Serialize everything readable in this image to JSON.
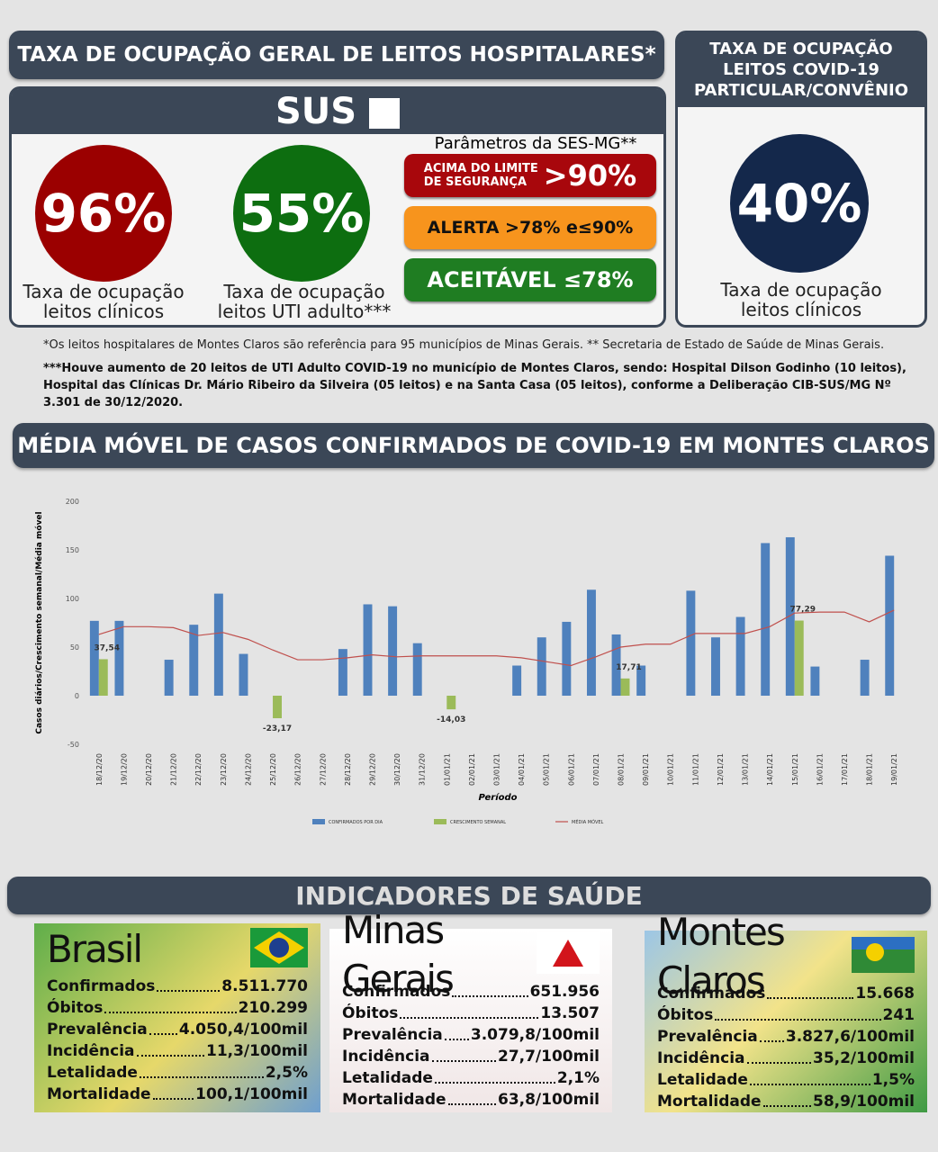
{
  "occupancy": {
    "title": "TAXA DE OCUPAÇÃO GERAL DE LEITOS HOSPITALARES*",
    "logo": "SUS",
    "clinical": {
      "value": "96%",
      "lines": [
        "Taxa de ocupação",
        "leitos clínicos"
      ]
    },
    "icu": {
      "value": "55%",
      "lines": [
        "Taxa de ocupação",
        "leitos UTI adulto***"
      ]
    },
    "parameters": {
      "title": "Parâmetros da SES-MG**",
      "items": [
        {
          "lines": [
            "ACIMA DO LIMITE",
            "DE SEGURANÇA"
          ],
          "value": ">90%"
        },
        {
          "text": "ALERTA >78% e≤90%"
        },
        {
          "text": "ACEITÁVEL ≤78%"
        }
      ]
    }
  },
  "private": {
    "lines": [
      "TAXA DE OCUPAÇÃO",
      "LEITOS COVID-19",
      "PARTICULAR/CONVÊNIO"
    ],
    "value": "40%",
    "labels": [
      "Taxa de ocupação",
      "leitos clínicos"
    ]
  },
  "notes": [
    "*Os leitos hospitalares de Montes Claros são referência para 95 municípios de Minas Gerais. ** Secretaria de Estado de Saúde de Minas Gerais.",
    "***Houve aumento de 20 leitos de UTI Adulto COVID-19 no município de Montes Claros, sendo: Hospital Dilson Godinho (10 leitos), Hospital das Clínicas Dr. Mário Ribeiro da Silveira (05 leitos) e na Santa Casa (05 leitos), conforme a Deliberação CIB-SUS/MG Nº 3.301 de 30/12/2020."
  ],
  "chart_data": {
    "type": "bar",
    "title": "MÉDIA MÓVEL DE CASOS CONFIRMADOS DE COVID-19 EM MONTES CLAROS",
    "x_label": "Período",
    "y_label": "Casos diários/Crescimento semanal/Média móvel",
    "categories": [
      "18/12/20",
      "19/12/20",
      "20/12/20",
      "21/12/20",
      "22/12/20",
      "23/12/20",
      "24/12/20",
      "25/12/20",
      "26/12/20",
      "27/12/20",
      "28/12/20",
      "29/12/20",
      "30/12/20",
      "31/12/20",
      "01/01/21",
      "02/01/21",
      "03/01/21",
      "04/01/21",
      "05/01/21",
      "06/01/21",
      "07/01/21",
      "08/01/21",
      "09/01/21",
      "10/01/21",
      "11/01/21",
      "12/01/21",
      "13/01/21",
      "14/01/21",
      "15/01/21",
      "16/01/21",
      "17/01/21",
      "18/01/21",
      "19/01/21"
    ],
    "ylim": [
      -50,
      200
    ],
    "yticks": [
      -50,
      0,
      50,
      100,
      150,
      200
    ],
    "series": [
      {
        "name": "CONFIRMADOS POR DIA",
        "type": "bar",
        "color": "#4f81bd",
        "values": [
          77,
          77,
          null,
          37,
          73,
          105,
          43,
          null,
          null,
          null,
          48,
          94,
          92,
          54,
          null,
          null,
          null,
          31,
          60,
          76,
          109,
          63,
          31,
          null,
          108,
          60,
          81,
          157,
          163,
          30,
          null,
          37,
          144
        ]
      },
      {
        "name": "CRESCIMENTO SEMANAL",
        "type": "bar",
        "color": "#9bbb59",
        "values": [
          37.54,
          null,
          null,
          null,
          null,
          null,
          null,
          -23.17,
          null,
          null,
          null,
          null,
          null,
          null,
          -14.03,
          null,
          null,
          null,
          null,
          null,
          null,
          17.71,
          null,
          null,
          null,
          null,
          null,
          null,
          77.29,
          null,
          null,
          null,
          null
        ],
        "value_labels": [
          "37,54",
          null,
          null,
          null,
          null,
          null,
          null,
          "-23,17",
          null,
          null,
          null,
          null,
          null,
          null,
          "-14,03",
          null,
          null,
          null,
          null,
          null,
          null,
          "17,71",
          null,
          null,
          null,
          null,
          null,
          null,
          "77,29",
          null,
          null,
          null,
          null
        ]
      },
      {
        "name": "MÉDIA MÓVEL",
        "type": "line",
        "color": "#c0504d",
        "values": [
          63,
          71,
          71,
          70,
          62,
          65,
          58,
          47,
          37,
          37,
          39,
          42,
          40,
          41,
          41,
          41,
          41,
          39,
          35,
          31,
          40,
          50,
          53,
          53,
          64,
          64,
          64,
          71,
          85,
          86,
          86,
          76,
          88
        ]
      }
    ]
  },
  "indicators": {
    "title": "INDICADORES DE SAÚDE",
    "panels": [
      {
        "name": "Brasil",
        "rows": [
          {
            "label": "Confirmados",
            "value": "8.511.770"
          },
          {
            "label": "Óbitos",
            "value": "210.299"
          },
          {
            "label": "Prevalência",
            "value": "4.050,4/100mil"
          },
          {
            "label": "Incidência",
            "value": "11,3/100mil"
          },
          {
            "label": "Letalidade",
            "value": "2,5%"
          },
          {
            "label": "Mortalidade",
            "value": "100,1/100mil"
          }
        ]
      },
      {
        "name": "Minas Gerais",
        "rows": [
          {
            "label": "Confirmados",
            "value": "651.956"
          },
          {
            "label": "Óbitos",
            "value": "13.507"
          },
          {
            "label": "Prevalência",
            "value": "3.079,8/100mil"
          },
          {
            "label": "Incidência",
            "value": "27,7/100mil"
          },
          {
            "label": "Letalidade",
            "value": "2,1%"
          },
          {
            "label": "Mortalidade",
            "value": "63,8/100mil"
          }
        ]
      },
      {
        "name": "Montes Claros",
        "rows": [
          {
            "label": "Confirmados",
            "value": "15.668"
          },
          {
            "label": "Óbitos",
            "value": "241"
          },
          {
            "label": "Prevalência",
            "value": "3.827,6/100mil"
          },
          {
            "label": "Incidência",
            "value": "35,2/100mil"
          },
          {
            "label": "Letalidade",
            "value": "1,5%"
          },
          {
            "label": "Mortalidade",
            "value": "58,9/100mil"
          }
        ]
      }
    ]
  }
}
